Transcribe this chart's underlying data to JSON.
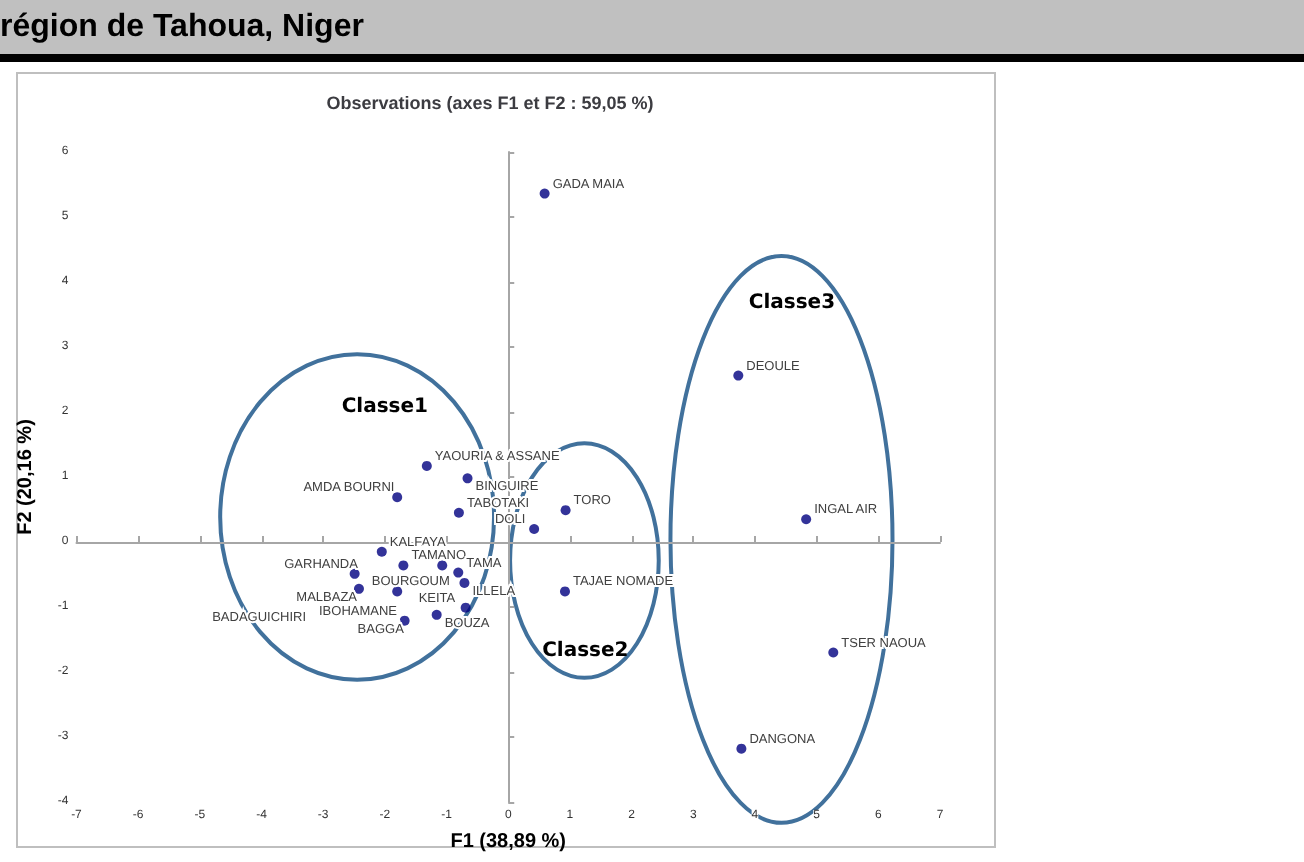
{
  "chart_data": {
    "type": "scatter",
    "title": "Observations (axes F1 et F2 : 59,05 %)",
    "xlabel": "F1 (38,89 %)",
    "ylabel": "F2 (20,16 %)",
    "x": [
      0.59,
      3.73,
      4.83,
      5.27,
      3.78,
      0.93,
      0.42,
      0.92,
      -1.32,
      -0.66,
      -1.8,
      -0.8,
      -2.05,
      -1.7,
      -1.07,
      -0.81,
      -2.49,
      -0.71,
      -2.42,
      -1.8,
      -0.69,
      -1.16,
      -1.68
    ],
    "values": [
      5.36,
      2.56,
      0.35,
      -1.7,
      -3.18,
      0.49,
      0.2,
      -0.76,
      1.17,
      0.98,
      0.69,
      0.45,
      -0.15,
      -0.36,
      -0.36,
      -0.47,
      -0.49,
      -0.63,
      -0.72,
      -0.76,
      -1.01,
      -1.12,
      -1.21
    ],
    "color": "#000080",
    "marker": "circle",
    "xlim": [
      -7,
      7
    ],
    "xticks": [
      -7,
      -6,
      -5,
      -4,
      -3,
      -2,
      -1,
      0,
      1,
      2,
      3,
      4,
      5,
      6,
      7
    ],
    "ylim": [
      -4,
      6
    ],
    "yticks": [
      -4,
      -3,
      -2,
      -1,
      0,
      1,
      2,
      3,
      4,
      5,
      6
    ],
    "annotations": [
      "région de Tahoua, Niger",
      "Classe1",
      "Classe2",
      "Classe3",
      "BADAGUICHIRI",
      {
        "text": "GADA MAIA",
        "x": 0.59,
        "y": 5.36
      },
      {
        "text": "DEOULE",
        "x": 3.73,
        "y": 2.56
      },
      {
        "text": "INGAL AIR",
        "x": 4.83,
        "y": 0.35
      },
      {
        "text": "TSER NAOUA",
        "x": 5.27,
        "y": -1.7
      },
      {
        "text": "DANGONA",
        "x": 3.78,
        "y": -3.18
      },
      {
        "text": "TORO",
        "x": 0.93,
        "y": 0.49
      },
      {
        "text": "DOLI",
        "x": 0.42,
        "y": 0.2
      },
      {
        "text": "TAJAE NOMADE",
        "x": 0.92,
        "y": -0.76
      },
      {
        "text": "YAOURIA & ASSANE",
        "x": -1.32,
        "y": 1.17
      },
      {
        "text": "BINGUIRE",
        "x": -0.66,
        "y": 0.98
      },
      {
        "text": "AMDA BOURNI",
        "x": -1.8,
        "y": 0.69
      },
      {
        "text": "TABOTAKI",
        "x": -0.8,
        "y": 0.45
      },
      {
        "text": "KALFAYA",
        "x": -2.05,
        "y": -0.15
      },
      {
        "text": "TAMANO",
        "x": -1.7,
        "y": -0.36
      },
      {
        "text": "BOURGOUM",
        "x": -1.07,
        "y": -0.36
      },
      {
        "text": "TAMA",
        "x": -0.81,
        "y": -0.47
      },
      {
        "text": "GARHANDA",
        "x": -2.49,
        "y": -0.49
      },
      {
        "text": "ILLELA",
        "x": -0.71,
        "y": -0.63
      },
      {
        "text": "MALBAZA",
        "x": -2.42,
        "y": -0.72
      },
      {
        "text": "IBOHAMANE",
        "x": -1.8,
        "y": -0.76
      },
      {
        "text": "KEITA",
        "x": -0.69,
        "y": -1.01
      },
      {
        "text": "BOUZA",
        "x": -1.16,
        "y": -1.12
      },
      {
        "text": "BAGGA",
        "x": -1.68,
        "y": -1.21
      }
    ]
  }
}
